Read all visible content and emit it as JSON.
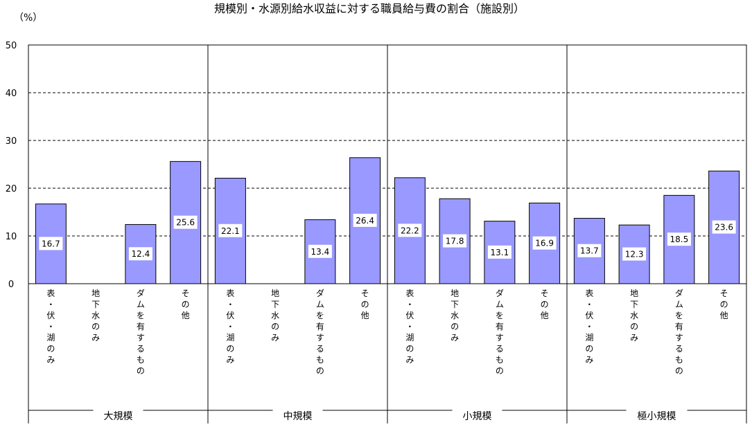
{
  "chart_data": {
    "type": "bar",
    "title": "規模別・水源別給水収益に対する職員給与費の割合（施設別）",
    "unit_label": "（%）",
    "ylim": [
      0,
      50
    ],
    "yticks": [
      0,
      10,
      20,
      30,
      40,
      50
    ],
    "grid": "dashed horizontal",
    "bar_color": "#9999ff",
    "groups": [
      {
        "name": "大規模",
        "categories": [
          {
            "label": "表・伏・湖のみ",
            "value": 16.7
          },
          {
            "label": "地下水のみ",
            "value": null
          },
          {
            "label": "ダムを有するもの",
            "value": 12.4
          },
          {
            "label": "その他",
            "value": 25.6
          }
        ]
      },
      {
        "name": "中規模",
        "categories": [
          {
            "label": "表・伏・湖のみ",
            "value": 22.1
          },
          {
            "label": "地下水のみ",
            "value": null
          },
          {
            "label": "ダムを有するもの",
            "value": 13.4
          },
          {
            "label": "その他",
            "value": 26.4
          }
        ]
      },
      {
        "name": "小規模",
        "categories": [
          {
            "label": "表・伏・湖のみ",
            "value": 22.2
          },
          {
            "label": "地下水のみ",
            "value": 17.8
          },
          {
            "label": "ダムを有するもの",
            "value": 13.1
          },
          {
            "label": "その他",
            "value": 16.9
          }
        ]
      },
      {
        "name": "極小規模",
        "categories": [
          {
            "label": "表・伏・湖のみ",
            "value": 13.7
          },
          {
            "label": "地下水のみ",
            "value": 12.3
          },
          {
            "label": "ダムを有するもの",
            "value": 18.5
          },
          {
            "label": "その他",
            "value": 23.6
          }
        ]
      }
    ]
  }
}
